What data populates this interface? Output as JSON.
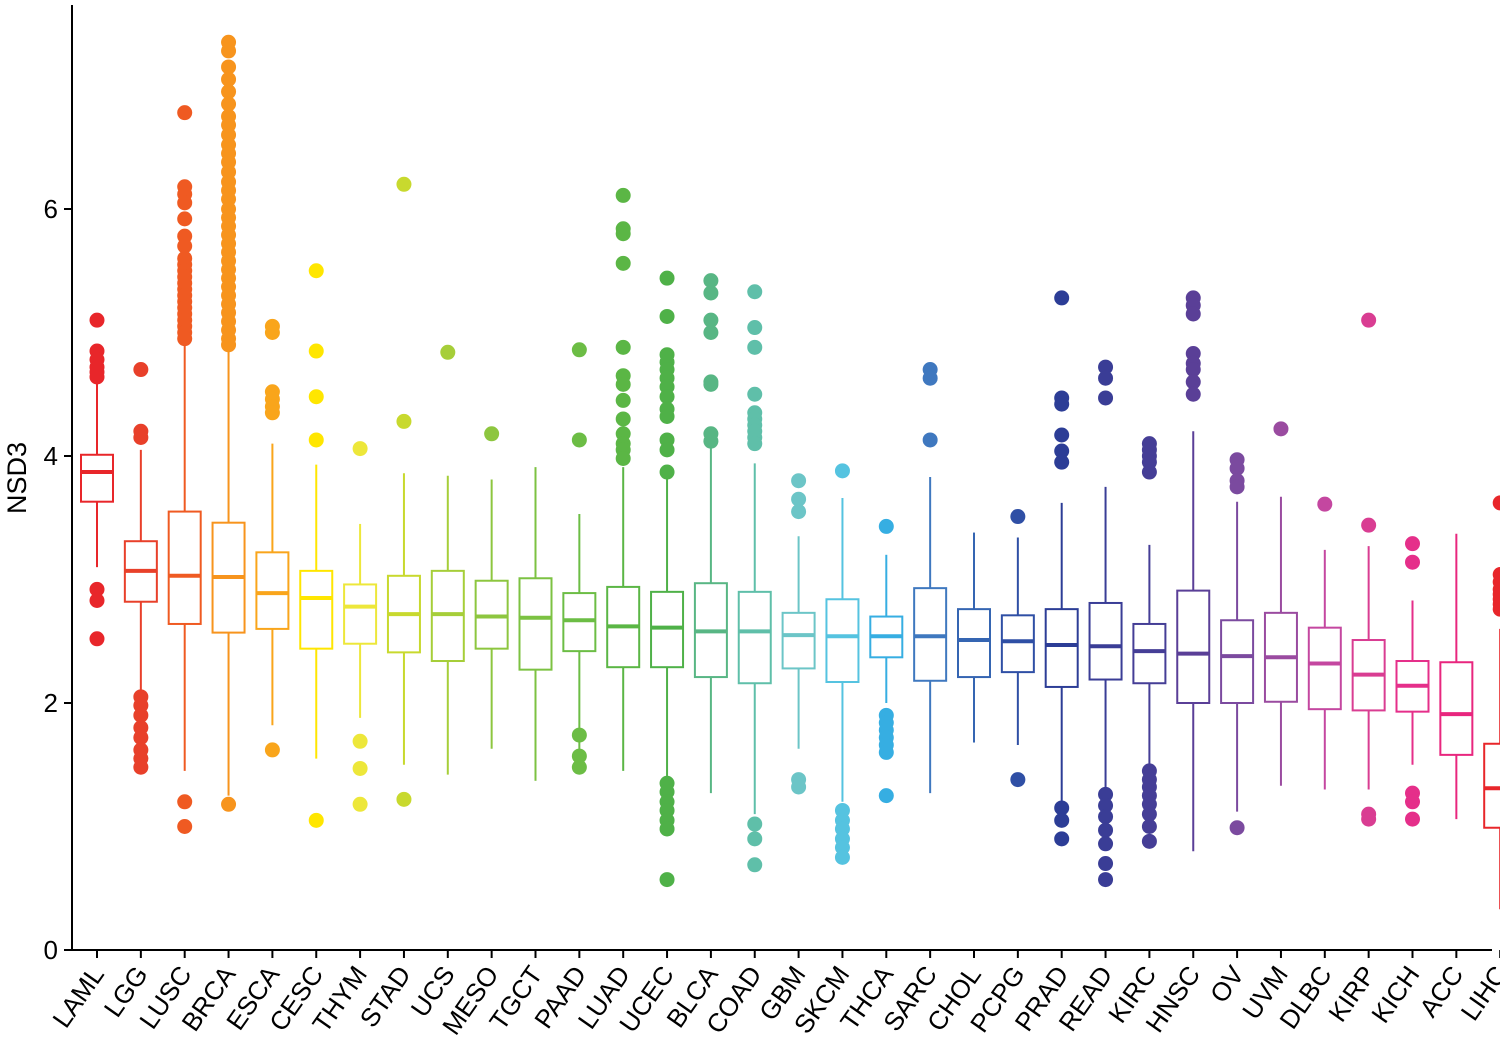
{
  "chart_data": {
    "type": "boxplot",
    "title": "",
    "xlabel": "",
    "ylabel": "NSD3",
    "ylim": [
      0,
      7.6
    ],
    "yticks": [
      0,
      2,
      4,
      6
    ],
    "grid": false,
    "legend": "none",
    "categories": [
      "LAML",
      "LGG",
      "LUSC",
      "BRCA",
      "ESCA",
      "CESC",
      "THYM",
      "STAD",
      "UCS",
      "MESO",
      "TGCT",
      "PAAD",
      "LUAD",
      "UCEC",
      "BLCA",
      "COAD",
      "GBM",
      "SKCM",
      "THCA",
      "SARC",
      "CHOL",
      "PCPG",
      "PRAD",
      "READ",
      "KIRC",
      "HNSC",
      "OV",
      "UVM",
      "DLBC",
      "KIRP",
      "KICH",
      "ACC",
      "LIHC"
    ],
    "colors": [
      "#e8262a",
      "#e8402a",
      "#ef5a22",
      "#f7941d",
      "#f9a51b",
      "#ffe600",
      "#ede73a",
      "#c8d92e",
      "#a6ce39",
      "#8dc63f",
      "#7cc242",
      "#6cbd45",
      "#5bb645",
      "#4fb148",
      "#58b684",
      "#5fbfa9",
      "#6cc5c7",
      "#55c3e0",
      "#36aee2",
      "#3f78bf",
      "#3565b2",
      "#2f4fa5",
      "#2c3d96",
      "#3a3d96",
      "#453e96",
      "#5a3f97",
      "#7b4a9f",
      "#9a4ba0",
      "#c447a0",
      "#d93d92",
      "#e52f8a",
      "#e8267e",
      "#e8262a"
    ],
    "stats": [
      {
        "whislo": 3.1,
        "q1": 3.63,
        "med": 3.87,
        "q3": 4.01,
        "whishi": 4.6,
        "fliers": [
          5.1,
          4.85,
          4.78,
          4.72,
          4.68,
          4.64,
          2.92,
          2.83,
          2.52
        ]
      },
      {
        "whislo": 2.1,
        "q1": 2.82,
        "med": 3.07,
        "q3": 3.31,
        "whishi": 4.05,
        "fliers": [
          4.7,
          4.2,
          4.15,
          2.05,
          1.98,
          1.9,
          1.8,
          1.72,
          1.62,
          1.55,
          1.48
        ]
      },
      {
        "whislo": 1.45,
        "q1": 2.64,
        "med": 3.03,
        "q3": 3.55,
        "whishi": 4.9,
        "fliers": [
          6.78,
          6.18,
          6.12,
          6.05,
          5.92,
          5.78,
          5.7,
          5.6,
          5.55,
          5.5,
          5.45,
          5.4,
          5.35,
          5.3,
          5.25,
          5.2,
          5.15,
          5.1,
          5.05,
          5.0,
          4.95,
          1.2,
          1.0
        ]
      },
      {
        "whislo": 1.25,
        "q1": 2.57,
        "med": 3.02,
        "q3": 3.46,
        "whishi": 4.85,
        "fliers": [
          7.35,
          7.28,
          7.15,
          7.05,
          6.95,
          6.85,
          6.75,
          6.68,
          6.6,
          6.52,
          6.45,
          6.38,
          6.3,
          6.22,
          6.15,
          6.08,
          6.0,
          5.93,
          5.86,
          5.79,
          5.72,
          5.65,
          5.58,
          5.51,
          5.44,
          5.37,
          5.3,
          5.23,
          5.16,
          5.09,
          5.02,
          4.95,
          4.9,
          1.18
        ]
      },
      {
        "whislo": 1.82,
        "q1": 2.6,
        "med": 2.89,
        "q3": 3.22,
        "whishi": 4.1,
        "fliers": [
          5.05,
          5.0,
          4.52,
          4.46,
          4.4,
          4.35,
          1.62
        ]
      },
      {
        "whislo": 1.55,
        "q1": 2.44,
        "med": 2.85,
        "q3": 3.07,
        "whishi": 3.93,
        "fliers": [
          5.5,
          4.85,
          4.48,
          4.13,
          1.05
        ]
      },
      {
        "whislo": 1.88,
        "q1": 2.48,
        "med": 2.78,
        "q3": 2.96,
        "whishi": 3.45,
        "fliers": [
          4.06,
          1.69,
          1.47,
          1.18
        ]
      },
      {
        "whislo": 1.5,
        "q1": 2.41,
        "med": 2.72,
        "q3": 3.03,
        "whishi": 3.86,
        "fliers": [
          6.2,
          4.28,
          1.22
        ]
      },
      {
        "whislo": 1.42,
        "q1": 2.34,
        "med": 2.72,
        "q3": 3.07,
        "whishi": 3.84,
        "fliers": [
          4.84
        ]
      },
      {
        "whislo": 1.63,
        "q1": 2.44,
        "med": 2.7,
        "q3": 2.99,
        "whishi": 3.81,
        "fliers": [
          4.18
        ]
      },
      {
        "whislo": 1.37,
        "q1": 2.27,
        "med": 2.69,
        "q3": 3.01,
        "whishi": 3.91,
        "fliers": []
      },
      {
        "whislo": 1.55,
        "q1": 2.42,
        "med": 2.67,
        "q3": 2.89,
        "whishi": 3.53,
        "fliers": [
          4.86,
          4.13,
          1.74,
          1.57,
          1.48
        ]
      },
      {
        "whislo": 1.45,
        "q1": 2.29,
        "med": 2.62,
        "q3": 2.94,
        "whishi": 3.91,
        "fliers": [
          6.11,
          5.84,
          5.8,
          5.56,
          4.88,
          4.65,
          4.58,
          4.45,
          4.3,
          4.18,
          4.1,
          4.05,
          3.98
        ]
      },
      {
        "whislo": 1.4,
        "q1": 2.29,
        "med": 2.61,
        "q3": 2.9,
        "whishi": 3.88,
        "fliers": [
          5.44,
          5.13,
          4.82,
          4.76,
          4.7,
          4.63,
          4.56,
          4.48,
          4.38,
          4.32,
          4.13,
          4.05,
          3.87,
          1.35,
          1.28,
          1.2,
          1.13,
          1.05,
          0.98,
          0.57
        ]
      },
      {
        "whislo": 1.27,
        "q1": 2.21,
        "med": 2.58,
        "q3": 2.97,
        "whishi": 4.1,
        "fliers": [
          5.42,
          5.32,
          5.1,
          5.0,
          4.6,
          4.58,
          4.18,
          4.12
        ]
      },
      {
        "whislo": 1.1,
        "q1": 2.16,
        "med": 2.58,
        "q3": 2.9,
        "whishi": 3.94,
        "fliers": [
          5.33,
          5.04,
          4.88,
          4.5,
          4.35,
          4.3,
          4.25,
          4.2,
          4.15,
          4.1,
          1.02,
          0.9,
          0.69
        ]
      },
      {
        "whislo": 1.63,
        "q1": 2.28,
        "med": 2.55,
        "q3": 2.73,
        "whishi": 3.35,
        "fliers": [
          3.8,
          3.65,
          3.55,
          1.38,
          1.32
        ]
      },
      {
        "whislo": 1.2,
        "q1": 2.17,
        "med": 2.54,
        "q3": 2.84,
        "whishi": 3.66,
        "fliers": [
          3.88,
          1.13,
          1.05,
          0.98,
          0.9,
          0.83,
          0.75
        ]
      },
      {
        "whislo": 2.0,
        "q1": 2.37,
        "med": 2.54,
        "q3": 2.7,
        "whishi": 3.2,
        "fliers": [
          3.43,
          1.9,
          1.84,
          1.78,
          1.72,
          1.66,
          1.6,
          1.25
        ]
      },
      {
        "whislo": 1.27,
        "q1": 2.18,
        "med": 2.54,
        "q3": 2.93,
        "whishi": 3.83,
        "fliers": [
          4.7,
          4.63,
          4.13
        ]
      },
      {
        "whislo": 1.68,
        "q1": 2.21,
        "med": 2.51,
        "q3": 2.76,
        "whishi": 3.38,
        "fliers": []
      },
      {
        "whislo": 1.66,
        "q1": 2.25,
        "med": 2.5,
        "q3": 2.71,
        "whishi": 3.34,
        "fliers": [
          3.51,
          1.38
        ]
      },
      {
        "whislo": 1.2,
        "q1": 2.13,
        "med": 2.47,
        "q3": 2.76,
        "whishi": 3.62,
        "fliers": [
          5.28,
          4.47,
          4.42,
          4.17,
          4.04,
          3.95,
          1.15,
          1.05,
          0.9
        ]
      },
      {
        "whislo": 1.3,
        "q1": 2.19,
        "med": 2.46,
        "q3": 2.81,
        "whishi": 3.75,
        "fliers": [
          4.72,
          4.63,
          4.47,
          1.26,
          1.17,
          1.08,
          0.97,
          0.86,
          0.7,
          0.57
        ]
      },
      {
        "whislo": 1.5,
        "q1": 2.16,
        "med": 2.42,
        "q3": 2.64,
        "whishi": 3.28,
        "fliers": [
          4.1,
          4.05,
          4.0,
          3.95,
          3.87,
          1.45,
          1.38,
          1.32,
          1.25,
          1.18,
          1.1,
          1.0,
          0.88
        ]
      },
      {
        "whislo": 0.8,
        "q1": 2.0,
        "med": 2.4,
        "q3": 2.91,
        "whishi": 4.2,
        "fliers": [
          5.28,
          5.22,
          5.15,
          4.83,
          4.75,
          4.7,
          4.6,
          4.5
        ]
      },
      {
        "whislo": 1.12,
        "q1": 2.0,
        "med": 2.38,
        "q3": 2.67,
        "whishi": 3.63,
        "fliers": [
          3.97,
          3.9,
          3.8,
          3.75,
          0.99
        ]
      },
      {
        "whislo": 1.33,
        "q1": 2.01,
        "med": 2.37,
        "q3": 2.73,
        "whishi": 3.67,
        "fliers": [
          4.22
        ]
      },
      {
        "whislo": 1.3,
        "q1": 1.95,
        "med": 2.32,
        "q3": 2.61,
        "whishi": 3.24,
        "fliers": [
          3.61
        ]
      },
      {
        "whislo": 1.3,
        "q1": 1.94,
        "med": 2.23,
        "q3": 2.51,
        "whishi": 3.27,
        "fliers": [
          5.1,
          3.44,
          1.1,
          1.06
        ]
      },
      {
        "whislo": 1.5,
        "q1": 1.93,
        "med": 2.14,
        "q3": 2.34,
        "whishi": 2.83,
        "fliers": [
          3.29,
          3.14,
          1.27,
          1.2,
          1.06
        ]
      },
      {
        "whislo": 1.06,
        "q1": 1.58,
        "med": 1.91,
        "q3": 2.33,
        "whishi": 3.37,
        "fliers": []
      },
      {
        "whislo": 0.33,
        "q1": 0.99,
        "med": 1.31,
        "q3": 1.67,
        "whishi": 2.6,
        "fliers": [
          3.62,
          3.04,
          2.98,
          2.92,
          2.88,
          2.84,
          2.8,
          2.76
        ]
      }
    ]
  }
}
